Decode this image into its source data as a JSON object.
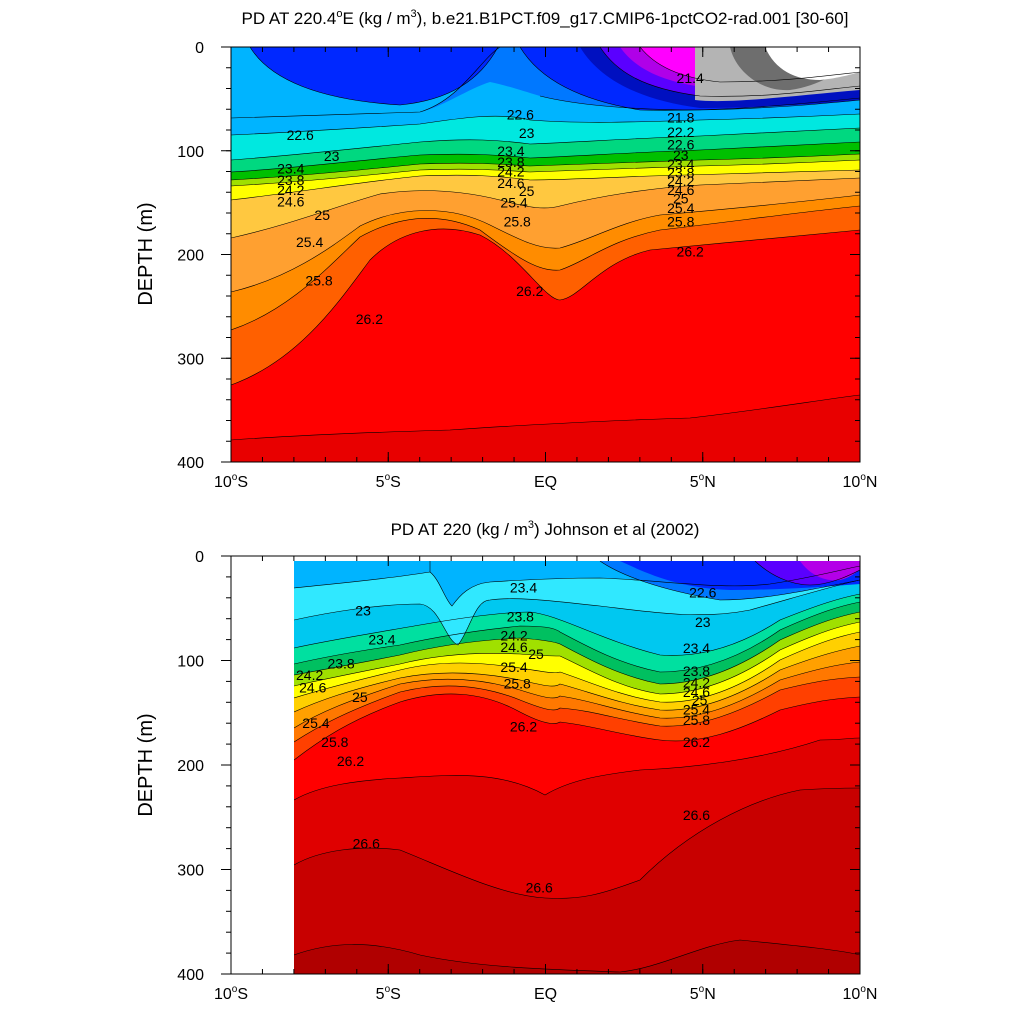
{
  "chart_data": [
    {
      "type": "contour",
      "title": "PD AT 220.4°E (kg / m3), b.e21.B1PCT.f09_g17.CMIP6-1pctCO2-rad.001 [30-60]",
      "title_parts": [
        "PD AT 220.4",
        "o",
        "E (kg / m",
        "3",
        "), b.e21.B1PCT.f09_g17.CMIP6-1pctCO2-rad.001 [30-60]"
      ],
      "ylabel": "DEPTH (m)",
      "xlim": [
        -10,
        10
      ],
      "ylim": [
        0,
        400
      ],
      "y_reversed": true,
      "xticks": [
        {
          "value": -10,
          "label": "10",
          "sup": "o",
          "suffix": "S"
        },
        {
          "value": -5,
          "label": "5",
          "sup": "o",
          "suffix": "S"
        },
        {
          "value": 0,
          "label": "EQ",
          "sup": "",
          "suffix": ""
        },
        {
          "value": 5,
          "label": "5",
          "sup": "o",
          "suffix": "N"
        },
        {
          "value": 10,
          "label": "10",
          "sup": "o",
          "suffix": "N"
        }
      ],
      "yticks": [
        "0",
        "100",
        "200",
        "300",
        "400"
      ],
      "data_start_lat": -10,
      "contour_labels": [
        {
          "text": "22.6",
          "lat": -7.8,
          "depth": 85
        },
        {
          "text": "23",
          "lat": -6.8,
          "depth": 105
        },
        {
          "text": "23.4",
          "lat": -8.1,
          "depth": 117
        },
        {
          "text": "23.8",
          "lat": -8.1,
          "depth": 128
        },
        {
          "text": "24.2",
          "lat": -8.1,
          "depth": 138
        },
        {
          "text": "24.6",
          "lat": -8.1,
          "depth": 149
        },
        {
          "text": "25",
          "lat": -7.1,
          "depth": 162
        },
        {
          "text": "25.4",
          "lat": -7.5,
          "depth": 188
        },
        {
          "text": "25.8",
          "lat": -7.2,
          "depth": 225
        },
        {
          "text": "26.2",
          "lat": -5.6,
          "depth": 262
        },
        {
          "text": "22.6",
          "lat": -0.8,
          "depth": 65
        },
        {
          "text": "23",
          "lat": -0.6,
          "depth": 83
        },
        {
          "text": "23.4",
          "lat": -1.1,
          "depth": 100
        },
        {
          "text": "23.8",
          "lat": -1.1,
          "depth": 111
        },
        {
          "text": "24.2",
          "lat": -1.1,
          "depth": 120
        },
        {
          "text": "24.6",
          "lat": -1.1,
          "depth": 131
        },
        {
          "text": "25",
          "lat": -0.6,
          "depth": 139
        },
        {
          "text": "25.4",
          "lat": -1.0,
          "depth": 150
        },
        {
          "text": "25.8",
          "lat": -0.9,
          "depth": 168
        },
        {
          "text": "26.2",
          "lat": -0.5,
          "depth": 235
        },
        {
          "text": "21.4",
          "lat": 4.6,
          "depth": 30
        },
        {
          "text": "21.8",
          "lat": 4.3,
          "depth": 68
        },
        {
          "text": "22.2",
          "lat": 4.3,
          "depth": 82
        },
        {
          "text": "22.6",
          "lat": 4.3,
          "depth": 94
        },
        {
          "text": "23",
          "lat": 4.3,
          "depth": 104
        },
        {
          "text": "23.4",
          "lat": 4.3,
          "depth": 113
        },
        {
          "text": "23.8",
          "lat": 4.3,
          "depth": 121
        },
        {
          "text": "24.2",
          "lat": 4.3,
          "depth": 129
        },
        {
          "text": "24.6",
          "lat": 4.3,
          "depth": 138
        },
        {
          "text": "25",
          "lat": 4.3,
          "depth": 146
        },
        {
          "text": "25.4",
          "lat": 4.3,
          "depth": 155
        },
        {
          "text": "25.8",
          "lat": 4.3,
          "depth": 168
        },
        {
          "text": "26.2",
          "lat": 4.6,
          "depth": 197
        }
      ]
    },
    {
      "type": "contour",
      "title": "PD AT 220 (kg / m3) Johnson et al (2002)",
      "title_parts": [
        "PD AT 220 (kg / m",
        "3",
        ") Johnson et al (2002)"
      ],
      "ylabel": "DEPTH (m)",
      "xlim": [
        -10,
        10
      ],
      "ylim": [
        0,
        400
      ],
      "y_reversed": true,
      "xticks": [
        {
          "value": -10,
          "label": "10",
          "sup": "o",
          "suffix": "S"
        },
        {
          "value": -5,
          "label": "5",
          "sup": "o",
          "suffix": "S"
        },
        {
          "value": 0,
          "label": "EQ",
          "sup": "",
          "suffix": ""
        },
        {
          "value": 5,
          "label": "5",
          "sup": "o",
          "suffix": "N"
        },
        {
          "value": 10,
          "label": "10",
          "sup": "o",
          "suffix": "N"
        }
      ],
      "yticks": [
        "0",
        "100",
        "200",
        "300",
        "400"
      ],
      "data_start_lat": -8,
      "contour_labels": [
        {
          "text": "23",
          "lat": -5.8,
          "depth": 52
        },
        {
          "text": "23.4",
          "lat": -5.2,
          "depth": 80
        },
        {
          "text": "23.8",
          "lat": -6.5,
          "depth": 103
        },
        {
          "text": "24.2",
          "lat": -7.5,
          "depth": 114
        },
        {
          "text": "24.6",
          "lat": -7.4,
          "depth": 126
        },
        {
          "text": "25",
          "lat": -5.9,
          "depth": 135
        },
        {
          "text": "25.4",
          "lat": -7.3,
          "depth": 160
        },
        {
          "text": "25.8",
          "lat": -6.7,
          "depth": 178
        },
        {
          "text": "26.2",
          "lat": -6.2,
          "depth": 196
        },
        {
          "text": "26.6",
          "lat": -5.7,
          "depth": 275
        },
        {
          "text": "23.4",
          "lat": -0.7,
          "depth": 30
        },
        {
          "text": "23.8",
          "lat": -0.8,
          "depth": 58
        },
        {
          "text": "24.2",
          "lat": -1.0,
          "depth": 76
        },
        {
          "text": "24.6",
          "lat": -1.0,
          "depth": 87
        },
        {
          "text": "25",
          "lat": -0.3,
          "depth": 94
        },
        {
          "text": "25.4",
          "lat": -1.0,
          "depth": 106
        },
        {
          "text": "25.8",
          "lat": -0.9,
          "depth": 122
        },
        {
          "text": "26.2",
          "lat": -0.7,
          "depth": 163
        },
        {
          "text": "26.6",
          "lat": -0.2,
          "depth": 317
        },
        {
          "text": "22.6",
          "lat": 5.0,
          "depth": 35
        },
        {
          "text": "23",
          "lat": 5.0,
          "depth": 63
        },
        {
          "text": "23.4",
          "lat": 4.8,
          "depth": 88
        },
        {
          "text": "23.8",
          "lat": 4.8,
          "depth": 110
        },
        {
          "text": "24.2",
          "lat": 4.8,
          "depth": 121
        },
        {
          "text": "24.6",
          "lat": 4.8,
          "depth": 130
        },
        {
          "text": "25",
          "lat": 4.9,
          "depth": 138
        },
        {
          "text": "25.4",
          "lat": 4.8,
          "depth": 147
        },
        {
          "text": "25.8",
          "lat": 4.8,
          "depth": 157
        },
        {
          "text": "26.2",
          "lat": 4.8,
          "depth": 178
        },
        {
          "text": "26.6",
          "lat": 4.8,
          "depth": 248
        }
      ]
    }
  ]
}
